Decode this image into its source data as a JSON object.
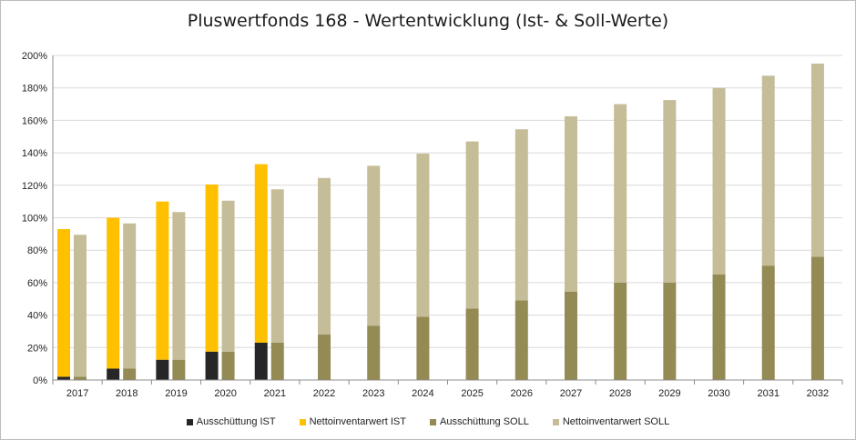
{
  "chart_data": {
    "type": "bar",
    "title": "Pluswertfonds 168 - Wertentwicklung (Ist- & Soll-Werte)",
    "categories": [
      "2017",
      "2018",
      "2019",
      "2020",
      "2021",
      "2022",
      "2023",
      "2024",
      "2025",
      "2026",
      "2027",
      "2028",
      "2029",
      "2030",
      "2031",
      "2032"
    ],
    "ylim": [
      0,
      200
    ],
    "yticks": [
      "0%",
      "20%",
      "40%",
      "60%",
      "80%",
      "100%",
      "120%",
      "140%",
      "160%",
      "180%",
      "200%"
    ],
    "ytick_values": [
      0,
      20,
      40,
      60,
      80,
      100,
      120,
      140,
      160,
      180,
      200
    ],
    "grid": true,
    "legend_position": "bottom",
    "stacked_groups": [
      {
        "group": "IST",
        "series": [
          {
            "name": "Ausschüttung IST",
            "color": "#262626",
            "values": [
              2,
              7,
              12.5,
              17.5,
              23,
              null,
              null,
              null,
              null,
              null,
              null,
              null,
              null,
              null,
              null,
              null
            ]
          },
          {
            "name": "Nettoinventarwert IST",
            "color": "#ffc000",
            "values": [
              91,
              93,
              97.5,
              103,
              110,
              null,
              null,
              null,
              null,
              null,
              null,
              null,
              null,
              null,
              null,
              null
            ]
          }
        ]
      },
      {
        "group": "SOLL",
        "series": [
          {
            "name": "Ausschüttung SOLL",
            "color": "#948a54",
            "values": [
              2,
              7,
              12.5,
              17.5,
              23,
              28,
              33.5,
              39,
              44,
              49,
              54.5,
              60,
              60,
              65,
              70.5,
              76
            ]
          },
          {
            "name": "Nettoinventarwert SOLL",
            "color": "#c4bd97",
            "values": [
              87.5,
              89.5,
              91,
              93,
              94.5,
              96.5,
              98.5,
              100.5,
              103,
              105.5,
              108,
              110,
              112.5,
              115,
              117,
              119
            ]
          }
        ]
      }
    ],
    "legend": [
      "Ausschüttung IST",
      "Nettoinventarwert IST",
      "Ausschüttung SOLL",
      "Nettoinventarwert SOLL"
    ]
  }
}
